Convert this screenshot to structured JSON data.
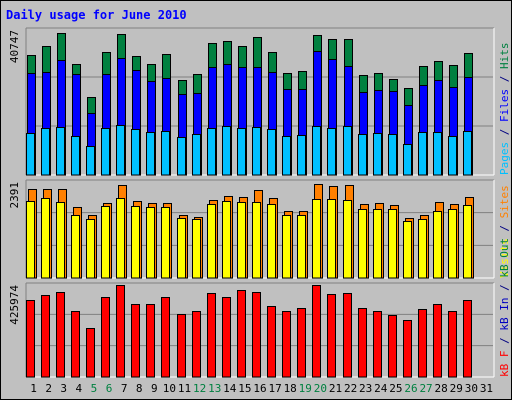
{
  "chart_data": [
    {
      "type": "bar",
      "title": "Daily usage for June 2010",
      "ylabel_parts": [
        {
          "text": "Pages",
          "color": "#00c0ff"
        },
        {
          "text": " / ",
          "color": "#000080"
        },
        {
          "text": "Files",
          "color": "#0000ff"
        },
        {
          "text": " / ",
          "color": "#000080"
        },
        {
          "text": "Hits",
          "color": "#008040"
        }
      ],
      "ymax_label": "40747",
      "ylim": [
        0,
        40747
      ],
      "categories": [
        "1",
        "2",
        "3",
        "4",
        "5",
        "6",
        "7",
        "8",
        "9",
        "10",
        "11",
        "12",
        "13",
        "14",
        "15",
        "16",
        "17",
        "18",
        "19",
        "20",
        "21",
        "22",
        "23",
        "24",
        "25",
        "26",
        "27",
        "28",
        "29",
        "30",
        "31"
      ],
      "weekend_days": [
        "5",
        "6",
        "12",
        "13",
        "19",
        "20",
        "26",
        "27"
      ],
      "series": [
        {
          "name": "Hits",
          "color": "#008040",
          "values": [
            33700,
            36200,
            39900,
            31300,
            21800,
            34500,
            39500,
            33500,
            31300,
            33900,
            26600,
            28300,
            37000,
            37600,
            36200,
            38700,
            34700,
            28800,
            29300,
            39300,
            38200,
            38200,
            28100,
            28800,
            26900,
            24400,
            30700,
            32100,
            30900,
            34400,
            null
          ]
        },
        {
          "name": "Files",
          "color": "#0000ff",
          "values": [
            28600,
            28900,
            32400,
            28300,
            17400,
            28500,
            32900,
            29500,
            26300,
            27200,
            22700,
            23100,
            30400,
            31300,
            30400,
            30400,
            28900,
            24100,
            24100,
            34900,
            32500,
            30700,
            23200,
            24000,
            23600,
            19600,
            25300,
            26700,
            24700,
            27600,
            null
          ]
        },
        {
          "name": "Pages",
          "color": "#00c0ff",
          "values": [
            11900,
            13300,
            13400,
            11100,
            8200,
            13200,
            14000,
            13000,
            12000,
            12400,
            10600,
            11400,
            13100,
            13700,
            13300,
            13600,
            13000,
            11000,
            11300,
            13900,
            13300,
            13800,
            11400,
            11800,
            11600,
            8800,
            12200,
            12000,
            11000,
            12400,
            null
          ]
        }
      ]
    },
    {
      "type": "bar",
      "ylabel_parts": [
        {
          "text": "Visits",
          "color": "#ffff00"
        },
        {
          "text": " / ",
          "color": "#000080"
        },
        {
          "text": "Sites",
          "color": "#ff8000"
        }
      ],
      "ymax_label": "2391",
      "ylim": [
        0,
        2391
      ],
      "categories": [
        "1",
        "2",
        "3",
        "4",
        "5",
        "6",
        "7",
        "8",
        "9",
        "10",
        "11",
        "12",
        "13",
        "14",
        "15",
        "16",
        "17",
        "18",
        "19",
        "20",
        "21",
        "22",
        "23",
        "24",
        "25",
        "26",
        "27",
        "28",
        "29",
        "30",
        "31"
      ],
      "series": [
        {
          "name": "Sites",
          "color": "#ff8000",
          "values": [
            2220,
            2220,
            2220,
            1760,
            1560,
            1860,
            2320,
            1920,
            1860,
            1880,
            1560,
            1520,
            1950,
            2030,
            2010,
            2180,
            2000,
            1660,
            1670,
            2340,
            2280,
            2320,
            1840,
            1860,
            1820,
            1490,
            1560,
            1890,
            1840,
            2010,
            null
          ]
        },
        {
          "name": "Visits",
          "color": "#ffff00",
          "values": [
            1930,
            1990,
            1900,
            1580,
            1470,
            1790,
            2000,
            1800,
            1760,
            1780,
            1490,
            1460,
            1840,
            1910,
            1900,
            1900,
            1840,
            1560,
            1560,
            1960,
            1980,
            1940,
            1730,
            1720,
            1710,
            1430,
            1470,
            1670,
            1720,
            1810,
            null
          ]
        }
      ]
    },
    {
      "type": "bar",
      "ylabel_parts": [
        {
          "text": "kB F",
          "color": "#ff0000"
        },
        {
          "text": " / ",
          "color": "#000080"
        },
        {
          "text": "kB In",
          "color": "#0000c0"
        },
        {
          "text": " / ",
          "color": "#000080"
        },
        {
          "text": "kB Out",
          "color": "#008040"
        }
      ],
      "ymax_label": "425974",
      "ylim": [
        0,
        425974
      ],
      "categories": [
        "1",
        "2",
        "3",
        "4",
        "5",
        "6",
        "7",
        "8",
        "9",
        "10",
        "11",
        "12",
        "13",
        "14",
        "15",
        "16",
        "17",
        "18",
        "19",
        "20",
        "21",
        "22",
        "23",
        "24",
        "25",
        "26",
        "27",
        "28",
        "29",
        "30",
        "31"
      ],
      "series": [
        {
          "name": "kB F",
          "color": "#ff0000",
          "values": [
            358000,
            379000,
            394000,
            304000,
            228000,
            371000,
            425000,
            338000,
            338000,
            371000,
            293000,
            304000,
            388000,
            371000,
            401000,
            394000,
            329000,
            304000,
            321000,
            425000,
            382000,
            388000,
            321000,
            304000,
            287000,
            263000,
            315000,
            338000,
            304000,
            358000,
            null
          ]
        }
      ]
    }
  ]
}
